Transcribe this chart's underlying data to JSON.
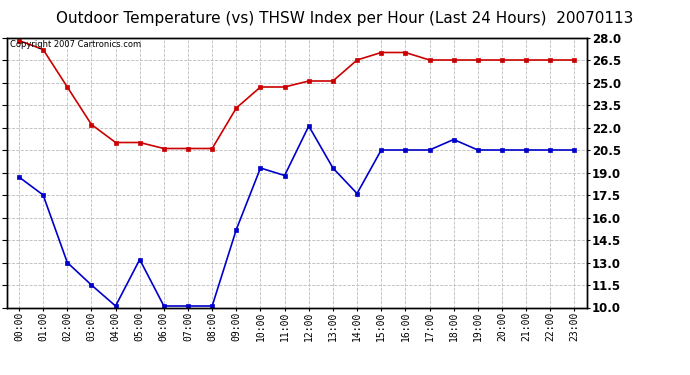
{
  "title": "Outdoor Temperature (vs) THSW Index per Hour (Last 24 Hours)  20070113",
  "copyright": "Copyright 2007 Cartronics.com",
  "x_labels": [
    "00:00",
    "01:00",
    "02:00",
    "03:00",
    "04:00",
    "05:00",
    "06:00",
    "07:00",
    "08:00",
    "09:00",
    "10:00",
    "11:00",
    "12:00",
    "13:00",
    "14:00",
    "15:00",
    "16:00",
    "17:00",
    "18:00",
    "19:00",
    "20:00",
    "21:00",
    "22:00",
    "23:00"
  ],
  "red_data": [
    27.8,
    27.2,
    24.7,
    22.2,
    21.0,
    21.0,
    20.6,
    20.6,
    20.6,
    23.3,
    24.7,
    24.7,
    25.1,
    25.1,
    26.5,
    27.0,
    27.0,
    26.5,
    26.5,
    26.5,
    26.5,
    26.5,
    26.5,
    26.5
  ],
  "blue_data": [
    18.7,
    17.5,
    13.0,
    11.5,
    10.1,
    13.2,
    10.1,
    10.1,
    10.1,
    15.2,
    19.3,
    18.8,
    22.1,
    19.3,
    17.6,
    20.5,
    20.5,
    20.5,
    21.2,
    20.5,
    20.5,
    20.5,
    20.5,
    20.5
  ],
  "ylim": [
    10.0,
    28.0
  ],
  "yticks": [
    10.0,
    11.5,
    13.0,
    14.5,
    16.0,
    17.5,
    19.0,
    20.5,
    22.0,
    23.5,
    25.0,
    26.5,
    28.0
  ],
  "red_color": "#cc0000",
  "blue_color": "#0000cc",
  "bg_color": "#ffffff",
  "grid_color": "#bbbbbb",
  "title_fontsize": 11,
  "marker": "s",
  "marker_size": 3.5,
  "linewidth": 1.2
}
